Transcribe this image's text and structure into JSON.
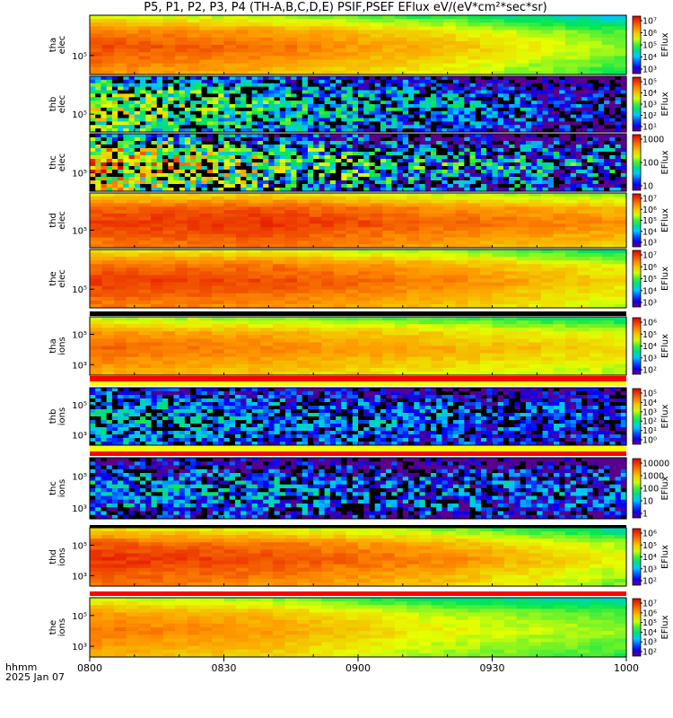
{
  "title": "P5, P1, P2, P3, P4 (TH-A,B,C,D,E) PSIF,PSEF EFlux eV/(eV*cm²*sec*sr)",
  "footer": {
    "line1": "hhmm",
    "line2": "2025 Jan 07"
  },
  "colors": {
    "frame": "#000000",
    "background": "#ffffff",
    "mode_red": "#ff0000",
    "mode_yellow": "#ffff00"
  },
  "chart_data": {
    "type": "heatmap",
    "title": "P5, P1, P2, P3, P4 (TH-A,B,C,D,E) PSIF,PSEF EFlux eV/(eV*cm²*sec*sr)",
    "x_tick_labels": [
      "0800",
      "0830",
      "0900",
      "0930",
      "1000"
    ],
    "x_ticks_minutes": [
      0,
      30,
      60,
      90,
      120
    ],
    "x_range_minutes": [
      0,
      120
    ],
    "y_scale": "log",
    "panels": [
      {
        "id": "tha-elec",
        "label_line1": "tha",
        "label_line2": "elec",
        "y_tick_labels": [
          "10⁵"
        ],
        "cbar_label": "EFlux",
        "cbar_tick_labels": [
          "10⁷",
          "10⁶",
          "10⁵",
          "10⁴",
          "10³"
        ],
        "cbar_log_range": [
          2.5,
          7.3
        ],
        "log_levels": [
          6.8,
          6.5,
          6.0,
          5.2
        ],
        "texture": "smooth"
      },
      {
        "id": "thb-elec",
        "label_line1": "thb",
        "label_line2": "elec",
        "y_tick_labels": [
          "10⁵"
        ],
        "cbar_label": "EFlux",
        "cbar_tick_labels": [
          "10⁵",
          "10⁴",
          "10³",
          "10²",
          "10¹"
        ],
        "cbar_log_range": [
          0.8,
          5.3
        ],
        "log_levels": [
          3.2,
          2.4,
          1.8,
          1.0
        ],
        "texture": "noisy"
      },
      {
        "id": "thc-elec",
        "label_line1": "thc",
        "label_line2": "elec",
        "y_tick_labels": [
          "10⁵"
        ],
        "cbar_label": "EFlux",
        "cbar_tick_labels": [
          "1000",
          "100",
          "10"
        ],
        "cbar_log_range": [
          0.5,
          3.6
        ],
        "log_levels": [
          2.6,
          1.8,
          1.2,
          1.0
        ],
        "texture": "noisy"
      },
      {
        "id": "thd-elec",
        "label_line1": "thd",
        "label_line2": "elec",
        "y_tick_labels": [
          "10⁵"
        ],
        "cbar_label": "EFlux",
        "cbar_tick_labels": [
          "10⁷",
          "10⁶",
          "10⁵",
          "10⁴",
          "10³"
        ],
        "cbar_log_range": [
          2.5,
          7.3
        ],
        "log_levels": [
          6.9,
          7.0,
          6.6,
          6.3
        ],
        "texture": "smooth"
      },
      {
        "id": "the-elec",
        "label_line1": "the",
        "label_line2": "elec",
        "y_tick_labels": [
          "10⁵"
        ],
        "cbar_label": "EFlux",
        "cbar_tick_labels": [
          "10⁷",
          "10⁶",
          "10⁵",
          "10⁴",
          "10³"
        ],
        "cbar_log_range": [
          2.5,
          7.3
        ],
        "log_levels": [
          6.9,
          6.8,
          6.4,
          5.8
        ],
        "texture": "smooth"
      },
      {
        "id": "tha-ions",
        "label_line1": "tha",
        "label_line2": "ions",
        "y_tick_labels": [
          "10⁵",
          "10³"
        ],
        "cbar_label": "EFlux",
        "cbar_tick_labels": [
          "10⁶",
          "10⁵",
          "10⁴",
          "10³",
          "10²"
        ],
        "cbar_log_range": [
          1.8,
          6.5
        ],
        "log_levels": [
          5.8,
          5.6,
          5.3,
          5.0
        ],
        "texture": "smooth"
      },
      {
        "id": "thb-ions",
        "label_line1": "thb",
        "label_line2": "ions",
        "y_tick_labels": [
          "10⁵",
          "10³"
        ],
        "cbar_label": "EFlux",
        "cbar_tick_labels": [
          "10⁵",
          "10⁴",
          "10³",
          "10²",
          "10¹",
          "10⁰"
        ],
        "cbar_log_range": [
          -0.2,
          5.4
        ],
        "log_levels": [
          1.5,
          1.0,
          0.8,
          0.6
        ],
        "texture": "noisy"
      },
      {
        "id": "thc-ions",
        "label_line1": "thc",
        "label_line2": "ions",
        "y_tick_labels": [
          "10⁵",
          "10³"
        ],
        "cbar_label": "EFlux",
        "cbar_tick_labels": [
          "10000",
          "1000",
          "100",
          "10",
          "1"
        ],
        "cbar_log_range": [
          0.0,
          4.3
        ],
        "log_levels": [
          1.0,
          0.8,
          0.6,
          0.5
        ],
        "texture": "noisy"
      },
      {
        "id": "thd-ions",
        "label_line1": "thd",
        "label_line2": "ions",
        "y_tick_labels": [
          "10⁵",
          "10³"
        ],
        "cbar_label": "EFlux",
        "cbar_tick_labels": [
          "10⁶",
          "10⁵",
          "10⁴",
          "10³",
          "10²"
        ],
        "cbar_log_range": [
          1.8,
          6.5
        ],
        "log_levels": [
          6.2,
          6.0,
          5.6,
          4.8
        ],
        "texture": "smooth"
      },
      {
        "id": "the-ions",
        "label_line1": "the",
        "label_line2": "ions",
        "y_tick_labels": [
          "10⁵",
          "10³"
        ],
        "cbar_label": "EFlux",
        "cbar_tick_labels": [
          "10⁷",
          "10⁶",
          "10⁵",
          "10⁴",
          "10³",
          "10²"
        ],
        "cbar_log_range": [
          1.5,
          7.3
        ],
        "log_levels": [
          6.3,
          6.0,
          5.2,
          4.8
        ],
        "texture": "smooth"
      }
    ]
  }
}
